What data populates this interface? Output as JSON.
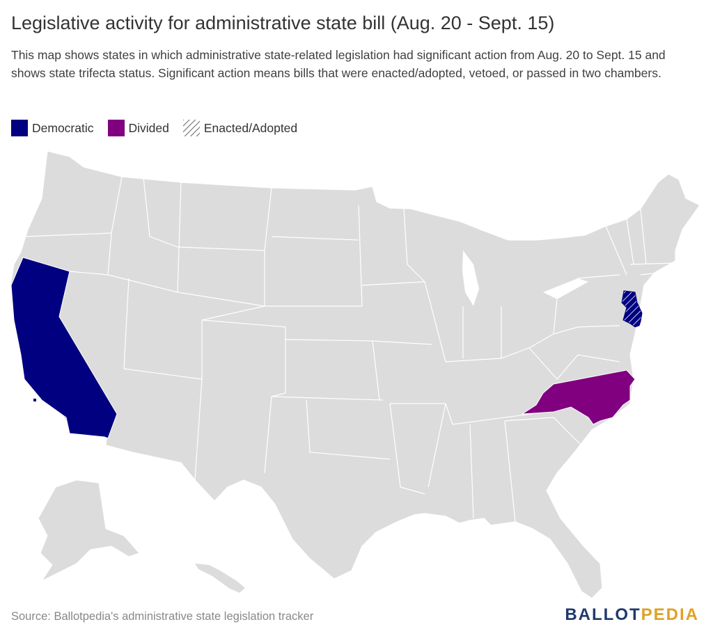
{
  "header": {
    "title": "Legislative activity for administrative state bill (Aug. 20 - Sept. 15)",
    "subtitle": "This map shows states in which administrative state-related legislation had significant action from Aug. 20 to Sept. 15 and shows state trifecta status. Significant action means bills that were enacted/adopted, vetoed, or passed in two chambers."
  },
  "legend": [
    {
      "label": "Democratic",
      "color": "#000080",
      "pattern": "solid"
    },
    {
      "label": "Divided",
      "color": "#800080",
      "pattern": "solid"
    },
    {
      "label": "Enacted/Adopted",
      "color": "#666666",
      "pattern": "hatch"
    }
  ],
  "colors": {
    "land": "#dcdcdc",
    "border": "#ffffff",
    "democratic": "#000080",
    "divided": "#800080",
    "logo_blue": "#1f3a6e",
    "logo_gold": "#e2a025"
  },
  "highlighted_states": [
    {
      "state": "California",
      "trifecta": "Democratic",
      "enacted": false
    },
    {
      "state": "New Jersey",
      "trifecta": "Democratic",
      "enacted": true
    },
    {
      "state": "North Carolina",
      "trifecta": "Divided",
      "enacted": false
    }
  ],
  "footer": {
    "source": "Source: Ballotpedia's administrative state legislation tracker",
    "logo_part1": "BALLOT",
    "logo_part2": "PEDIA"
  }
}
